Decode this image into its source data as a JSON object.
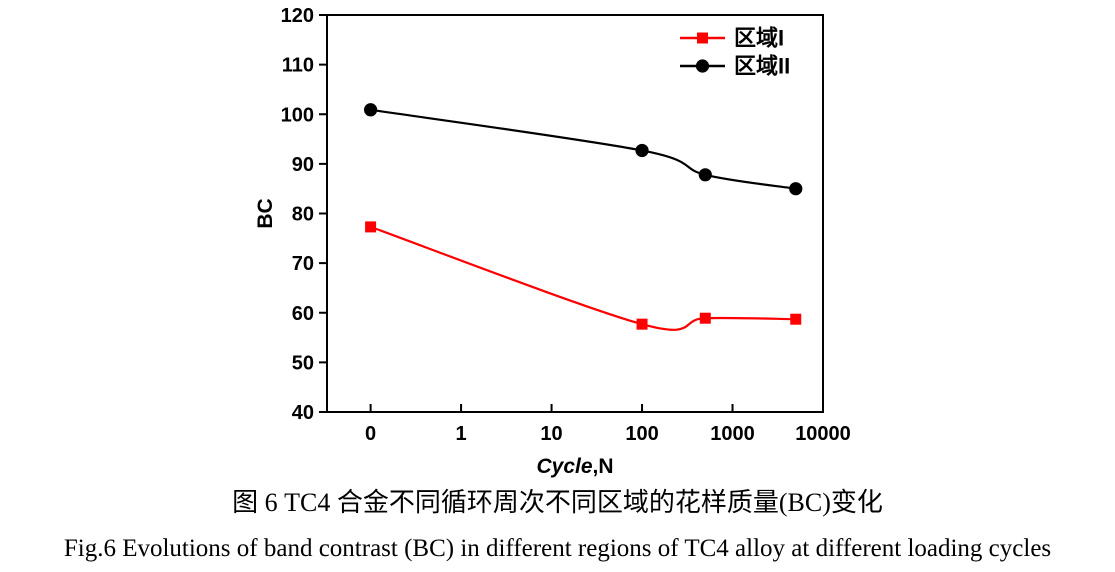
{
  "page": {
    "background": "#ffffff"
  },
  "figure": {
    "caption_zh": "图 6 TC4 合金不同循环周次不同区域的花样质量(BC)变化",
    "caption_en": "Fig.6 Evolutions of band contrast (BC) in different regions of TC4 alloy at different loading cycles"
  },
  "chart_data": {
    "type": "line",
    "title": "",
    "xlabel": "Cycle,N",
    "xlabel_italic": "Cycle",
    "xlabel_rest": ",N",
    "ylabel": "BC",
    "x_scale": "log-with-zero-slot",
    "x_ticks": [
      "0",
      "1",
      "10",
      "100",
      "1000",
      "10000"
    ],
    "y_ticks": [
      40,
      50,
      60,
      70,
      80,
      90,
      100,
      110,
      120
    ],
    "ylim": [
      40,
      120
    ],
    "grid": false,
    "legend_position": "top-right-inside",
    "axis_color": "#000000",
    "series": [
      {
        "name": "区域I",
        "color": "#ff0000",
        "marker": "square",
        "x": [
          0,
          100,
          500,
          5000
        ],
        "y": [
          77.3,
          57.7,
          58.9,
          58.7
        ]
      },
      {
        "name": "区域II",
        "color": "#000000",
        "marker": "circle",
        "x": [
          0,
          100,
          500,
          5000
        ],
        "y": [
          100.9,
          92.7,
          87.8,
          85.0
        ]
      }
    ]
  }
}
